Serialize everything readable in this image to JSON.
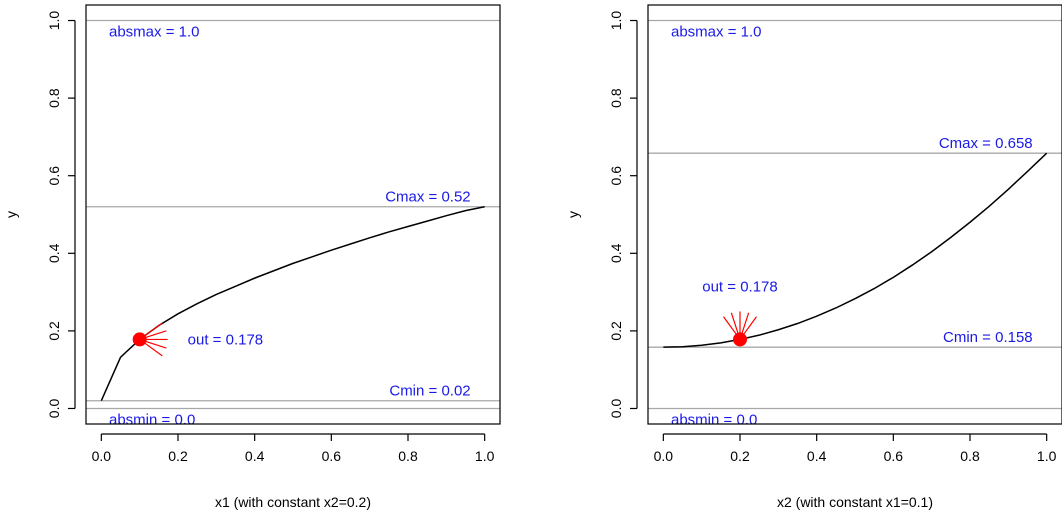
{
  "chart_data": [
    {
      "type": "line",
      "xlabel": "x1 (with constant x2=0.2)",
      "ylabel": "y",
      "xlim": [
        -0.04,
        1.04
      ],
      "ylim": [
        -0.04,
        1.04
      ],
      "xticks": [
        "0.0",
        "0.2",
        "0.4",
        "0.6",
        "0.8",
        "1.0"
      ],
      "yticks": [
        "0.0",
        "0.2",
        "0.4",
        "0.6",
        "0.8",
        "1.0"
      ],
      "grid": false,
      "x": [
        0.0,
        0.05,
        0.1,
        0.15,
        0.2,
        0.25,
        0.3,
        0.35,
        0.4,
        0.45,
        0.5,
        0.55,
        0.6,
        0.65,
        0.7,
        0.75,
        0.8,
        0.85,
        0.9,
        0.95,
        1.0
      ],
      "y": [
        0.02,
        0.132,
        0.178,
        0.214,
        0.244,
        0.27,
        0.294,
        0.315,
        0.336,
        0.355,
        0.374,
        0.391,
        0.408,
        0.424,
        0.44,
        0.455,
        0.469,
        0.483,
        0.497,
        0.51,
        0.52
      ],
      "hlines": [
        {
          "y": 1.0,
          "label": "absmax = 1.0",
          "at_x": 0.02,
          "label_pos": "below"
        },
        {
          "y": 0.52,
          "label": "Cmax =  0.52",
          "at_x": 1.0,
          "label_pos": "above"
        },
        {
          "y": 0.02,
          "label": "Cmin =  0.02",
          "at_x": 1.0,
          "label_pos": "above"
        },
        {
          "y": 0.0,
          "label": "absmin = 0.0",
          "at_x": 0.02,
          "label_pos": "below"
        }
      ],
      "point": {
        "x": 0.1,
        "y": 0.178,
        "label": "out = 0.178",
        "label_side": "right"
      }
    },
    {
      "type": "line",
      "xlabel": "x2 (with constant x1=0.1)",
      "ylabel": "y",
      "xlim": [
        -0.04,
        1.04
      ],
      "ylim": [
        -0.04,
        1.04
      ],
      "xticks": [
        "0.0",
        "0.2",
        "0.4",
        "0.6",
        "0.8",
        "1.0"
      ],
      "yticks": [
        "0.0",
        "0.2",
        "0.4",
        "0.6",
        "0.8",
        "1.0"
      ],
      "grid": false,
      "x": [
        0.0,
        0.05,
        0.1,
        0.15,
        0.2,
        0.25,
        0.3,
        0.35,
        0.4,
        0.45,
        0.5,
        0.55,
        0.6,
        0.65,
        0.7,
        0.75,
        0.8,
        0.85,
        0.9,
        0.95,
        1.0
      ],
      "y": [
        0.158,
        0.159,
        0.163,
        0.169,
        0.178,
        0.189,
        0.203,
        0.219,
        0.238,
        0.259,
        0.283,
        0.309,
        0.338,
        0.37,
        0.404,
        0.441,
        0.48,
        0.521,
        0.565,
        0.611,
        0.658
      ],
      "hlines": [
        {
          "y": 1.0,
          "label": "absmax = 1.0",
          "at_x": 0.02,
          "label_pos": "below"
        },
        {
          "y": 0.658,
          "label": "Cmax =  0.658",
          "at_x": 1.0,
          "label_pos": "above"
        },
        {
          "y": 0.158,
          "label": "Cmin =  0.158",
          "at_x": 1.0,
          "label_pos": "above"
        },
        {
          "y": 0.0,
          "label": "absmin = 0.0",
          "at_x": 0.02,
          "label_pos": "below"
        }
      ],
      "point": {
        "x": 0.2,
        "y": 0.178,
        "label": "out = 0.178",
        "label_side": "above"
      }
    }
  ],
  "colors": {
    "curve": "#000000",
    "reference_line": "#a8a8a8",
    "annotation_text": "#1a1ae6",
    "point": "#ff0000"
  }
}
